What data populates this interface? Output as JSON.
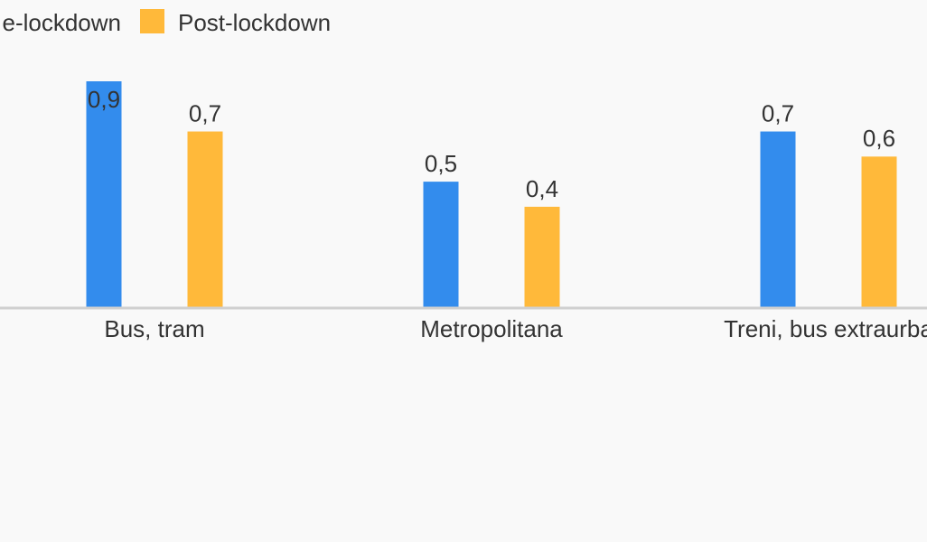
{
  "chart_data": {
    "type": "bar",
    "categories": [
      "Bus, tram",
      "Metropolitana",
      "Treni, bus extraurba"
    ],
    "series": [
      {
        "name": "e-lockdown",
        "color": "#338ced",
        "values": [
          0.9,
          0.5,
          0.7
        ],
        "value_labels": [
          "0,9",
          "0,5",
          "0,7"
        ]
      },
      {
        "name": "Post-lockdown",
        "color": "#ffb93a",
        "values": [
          0.7,
          0.4,
          0.6
        ],
        "value_labels": [
          "0,7",
          "0,4",
          "0,6"
        ]
      }
    ]
  }
}
